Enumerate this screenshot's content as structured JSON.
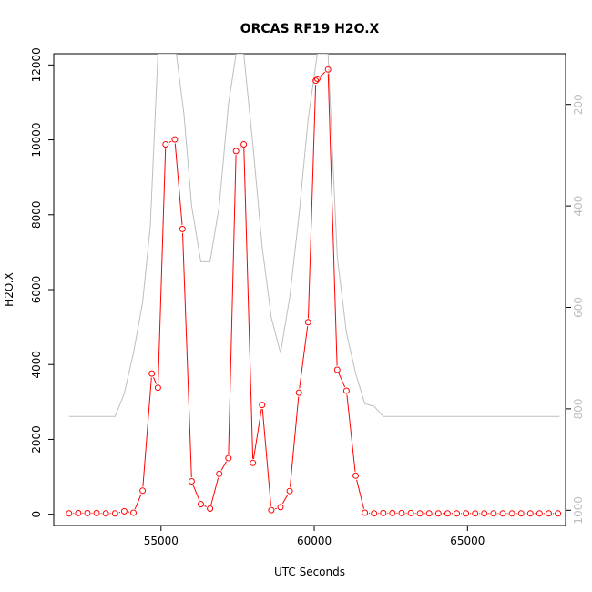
{
  "chart_data": {
    "type": "line",
    "title": "ORCAS RF19 H2O.X",
    "xlabel": "UTC Seconds",
    "ylabel": "H2O.X",
    "xlim": [
      51500,
      68200
    ],
    "ylim": [
      -300,
      12300
    ],
    "x_ticks": [
      55000,
      60000,
      65000
    ],
    "y_ticks": [
      0,
      2000,
      4000,
      6000,
      8000,
      10000,
      12000
    ],
    "y2_ticks": [
      200,
      400,
      600,
      800,
      1000
    ],
    "y2lim_top_to_bottom": [
      100,
      1030
    ],
    "grid": false,
    "legend": "none",
    "colors": {
      "primary": "#ff0000",
      "secondary": "#bebebe",
      "axis": "#000000"
    },
    "series": [
      {
        "x": [
          52000,
          52300,
          52600,
          52900,
          53200,
          53500,
          53800,
          54100,
          54400,
          54700,
          54900,
          55150,
          55450,
          55700,
          56000,
          56300,
          56600,
          56900,
          57200,
          57450,
          57700,
          58000,
          58300,
          58600,
          58900,
          59200,
          59500,
          59800,
          60050,
          60100,
          60450,
          60750,
          61050,
          61350,
          61650,
          61950,
          62250,
          62550,
          62850,
          63150,
          63450,
          63750,
          64050,
          64350,
          64650,
          64950,
          65250,
          65550,
          65850,
          66150,
          66450,
          66750,
          67050,
          67350,
          67650,
          67950
        ],
        "values": [
          20,
          30,
          30,
          30,
          20,
          20,
          80,
          40,
          630,
          3760,
          3380,
          9880,
          10010,
          7620,
          880,
          270,
          150,
          1080,
          1500,
          9700,
          9880,
          1370,
          2920,
          110,
          190,
          620,
          3250,
          5130,
          11580,
          11630,
          11880,
          3860,
          3300,
          1030,
          40,
          20,
          30,
          30,
          30,
          30,
          20,
          20,
          20,
          20,
          20,
          20,
          20,
          20,
          20,
          20,
          20,
          20,
          20,
          20,
          20,
          20
        ]
      },
      {
        "axis": "secondary",
        "x": [
          52000,
          53500,
          53800,
          54100,
          54400,
          54650,
          54900,
          55200,
          55500,
          55750,
          56000,
          56300,
          56600,
          56900,
          57200,
          57450,
          57700,
          58000,
          58300,
          58600,
          58900,
          59200,
          59500,
          59800,
          60100,
          60450,
          60750,
          61050,
          61350,
          61650,
          61950,
          62250,
          68000
        ],
        "values": [
          815,
          815,
          770,
          690,
          590,
          440,
          100,
          100,
          100,
          220,
          400,
          510,
          510,
          400,
          200,
          100,
          100,
          280,
          480,
          620,
          690,
          580,
          420,
          230,
          100,
          100,
          500,
          650,
          730,
          790,
          795,
          815,
          815
        ]
      }
    ]
  }
}
